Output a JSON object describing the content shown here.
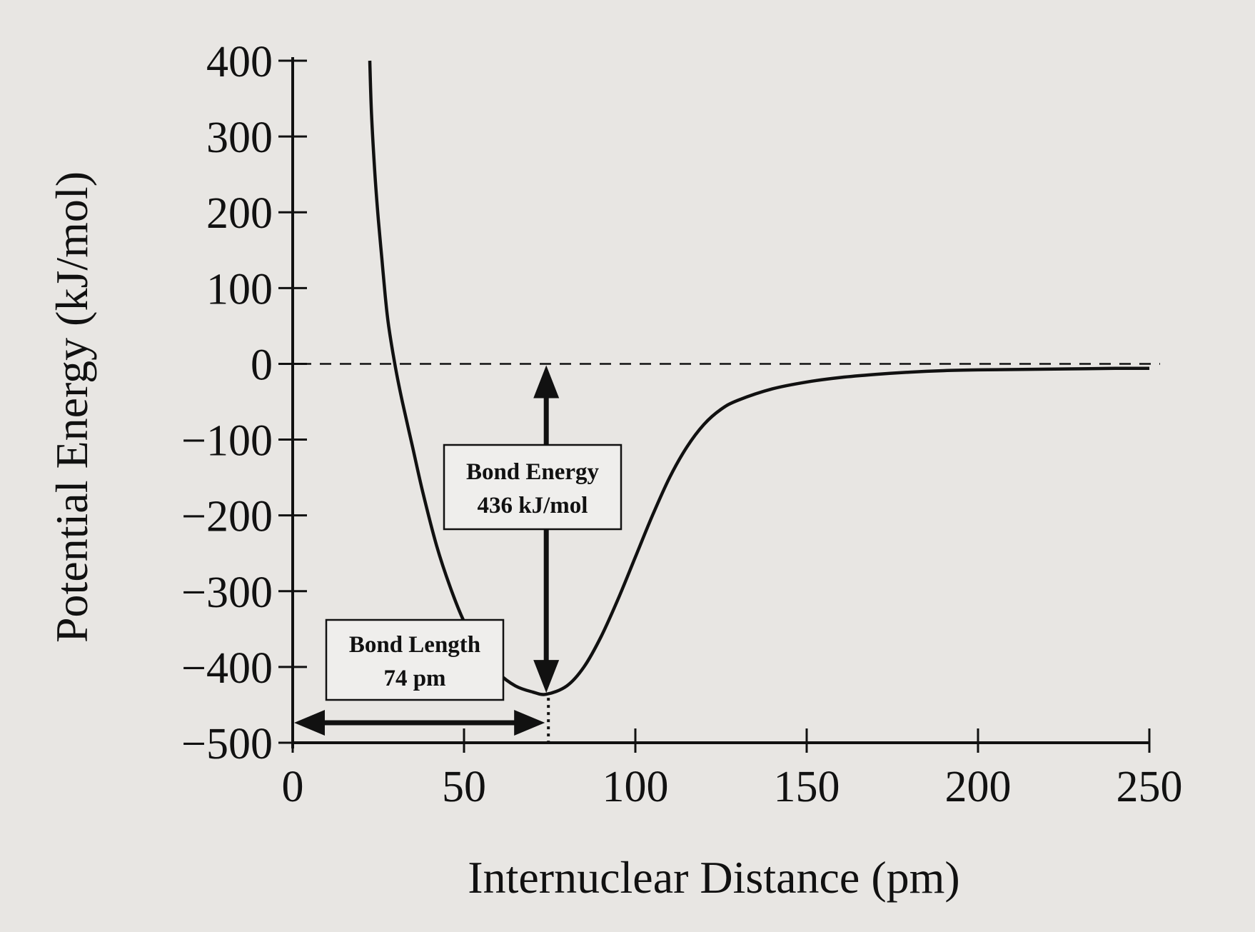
{
  "chart_data": {
    "type": "line",
    "title": "",
    "xlabel": "Internuclear Distance (pm)",
    "ylabel": "Potential Energy (kJ/mol)",
    "xlim": [
      0,
      250
    ],
    "ylim": [
      -500,
      400
    ],
    "x_ticks": [
      "0",
      "50",
      "100",
      "150",
      "200",
      "250"
    ],
    "y_ticks": [
      "400",
      "300",
      "200",
      "100",
      "0",
      "−100",
      "−200",
      "−300",
      "−400",
      "−500"
    ],
    "x_tick_values": [
      0,
      50,
      100,
      150,
      200,
      250
    ],
    "y_tick_values": [
      400,
      300,
      200,
      100,
      0,
      -100,
      -200,
      -300,
      -400,
      -500
    ],
    "grid": false,
    "series": [
      {
        "values_x": [
          22.5,
          23,
          24,
          25,
          26,
          27,
          28,
          30,
          32,
          35,
          38,
          42,
          46,
          50,
          55,
          60,
          65,
          70,
          74,
          80,
          85,
          90,
          95,
          100,
          105,
          110,
          115,
          120,
          125,
          130,
          140,
          150,
          160,
          170,
          180,
          190,
          200,
          220,
          240,
          250
        ],
        "values_y": [
          400,
          330,
          250,
          190,
          140,
          90,
          50,
          -5,
          -50,
          -110,
          -170,
          -240,
          -295,
          -340,
          -380,
          -408,
          -425,
          -433,
          -436,
          -425,
          -400,
          -360,
          -310,
          -255,
          -200,
          -150,
          -110,
          -80,
          -60,
          -48,
          -33,
          -24,
          -18,
          -14,
          -11,
          -9,
          -8,
          -7,
          -6,
          -6
        ]
      }
    ],
    "reference_line": {
      "y": 0,
      "style": "dashed"
    },
    "annotations": {
      "bond_energy": {
        "line1": "Bond Energy",
        "line2": "436 kJ/mol",
        "value": 436
      },
      "bond_length": {
        "line1": "Bond Length",
        "line2": "74 pm",
        "value": 74
      }
    }
  }
}
